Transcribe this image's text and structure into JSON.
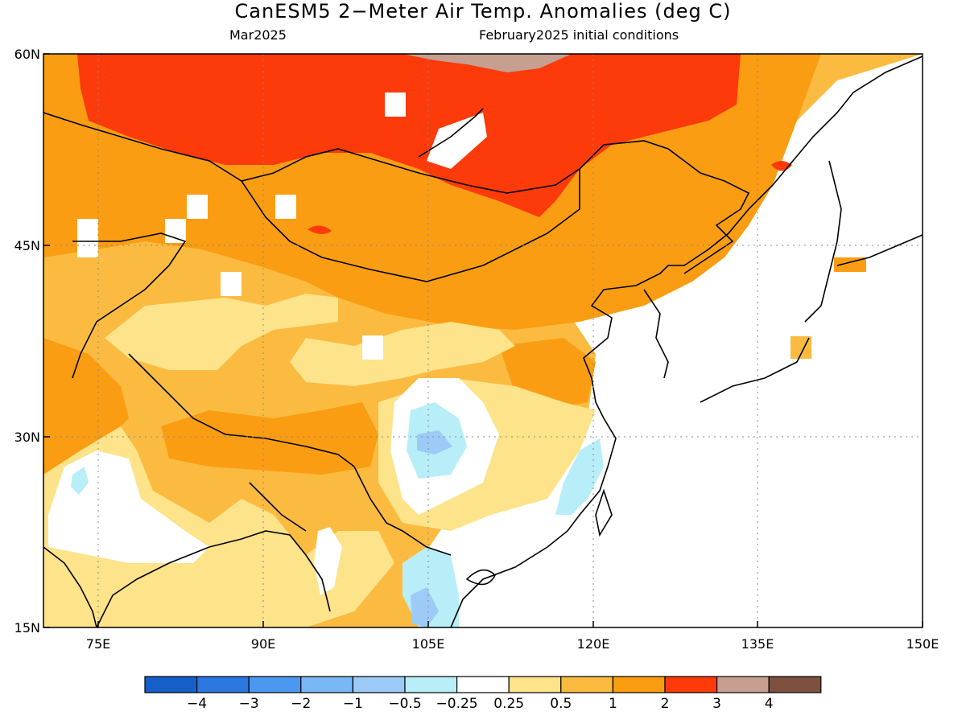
{
  "title": "CanESM5 2−Meter Air Temp. Anomalies (deg C)",
  "subtitle_left": "Mar2025",
  "subtitle_right": "February2025 initial conditions",
  "map": {
    "lon_range": [
      70,
      150
    ],
    "lat_range": [
      15,
      60
    ],
    "lat_ticks": [
      "60N",
      "45N",
      "30N",
      "15N"
    ],
    "lon_ticks": [
      "75E",
      "90E",
      "105E",
      "120E",
      "135E",
      "150E"
    ],
    "gridlines": "dotted"
  },
  "legend": {
    "colors": [
      "#1560c8",
      "#2a78e0",
      "#4b98f0",
      "#7ab8f5",
      "#9ccbf7",
      "#b8eef8",
      "#ffffff",
      "#fde38a",
      "#fbbb40",
      "#fa9d12",
      "#fc3a0a",
      "#c69f91",
      "#7d5040"
    ],
    "labels": [
      "−4",
      "−3",
      "−2",
      "−1",
      "−0.5",
      "−0.25",
      "0.25",
      "0.5",
      "1",
      "2",
      "3",
      "4"
    ]
  }
}
